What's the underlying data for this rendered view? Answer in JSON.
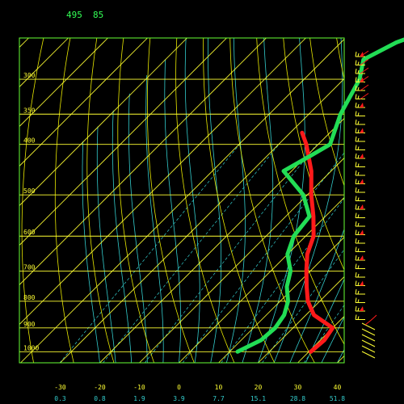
{
  "header": {
    "station": "495",
    "hour": "85"
  },
  "colors": {
    "background": "#000000",
    "frame": "#66ff33",
    "isobar": "#ffff33",
    "isotherm": "#ffff33",
    "dry_adiabat": "#e8e800",
    "moist_adiabat": "#33cccc",
    "mixing_ratio": "#33cccc",
    "temperature": "#ff1a1a",
    "dewpoint": "#22dd55",
    "pressure_label": "#ffff33",
    "temperature_label": "#ffff33",
    "mixing_ratio_label": "#33cccc"
  },
  "chart_data": {
    "type": "skew-t",
    "title": "",
    "pressure_labels": [
      "300",
      "350",
      "400",
      "500",
      "600",
      "700",
      "800",
      "900",
      "1000"
    ],
    "pressure_levels_hpa": [
      300,
      350,
      400,
      500,
      600,
      700,
      800,
      900,
      1000
    ],
    "temperature_tick_labels": [
      "-30",
      "-20",
      "-10",
      "0",
      "10",
      "20",
      "30",
      "40"
    ],
    "temperature_ticks_c": [
      -30,
      -20,
      -10,
      0,
      10,
      20,
      30,
      40
    ],
    "mixing_ratio_labels": [
      "0.3",
      "0.8",
      "1.9",
      "3.9",
      "7.7",
      "15.1",
      "28.8",
      "51.8"
    ],
    "xlim_c": [
      -40,
      45
    ],
    "grid": true,
    "series": [
      {
        "key": "temperature",
        "points": [
          {
            "p": 1000,
            "t": 30.5
          },
          {
            "p": 950,
            "t": 31
          },
          {
            "p": 900,
            "t": 30
          },
          {
            "p": 850,
            "t": 22
          },
          {
            "p": 800,
            "t": 17
          },
          {
            "p": 750,
            "t": 13
          },
          {
            "p": 700,
            "t": 9
          },
          {
            "p": 650,
            "t": 5
          },
          {
            "p": 600,
            "t": 2
          },
          {
            "p": 550,
            "t": -3
          },
          {
            "p": 500,
            "t": -9
          },
          {
            "p": 450,
            "t": -15
          },
          {
            "p": 400,
            "t": -23
          },
          {
            "p": 380,
            "t": -27
          }
        ]
      },
      {
        "key": "dewpoint",
        "points": [
          {
            "p": 1000,
            "t": 12
          },
          {
            "p": 950,
            "t": 15
          },
          {
            "p": 900,
            "t": 15.5
          },
          {
            "p": 850,
            "t": 14.5
          },
          {
            "p": 800,
            "t": 12
          },
          {
            "p": 750,
            "t": 8
          },
          {
            "p": 700,
            "t": 5
          },
          {
            "p": 650,
            "t": 0
          },
          {
            "p": 600,
            "t": -3
          },
          {
            "p": 550,
            "t": -4
          },
          {
            "p": 500,
            "t": -11
          },
          {
            "p": 450,
            "t": -22
          },
          {
            "p": 420,
            "t": -19
          },
          {
            "p": 400,
            "t": -17
          },
          {
            "p": 350,
            "t": -22
          },
          {
            "p": 300,
            "t": -26
          },
          {
            "p": 275,
            "t": -30
          },
          {
            "p": 255,
            "t": -26
          },
          {
            "p": 240,
            "t": -20
          }
        ]
      }
    ],
    "wind_barbs": {
      "count": 32,
      "count_red_flagged": 12
    }
  }
}
